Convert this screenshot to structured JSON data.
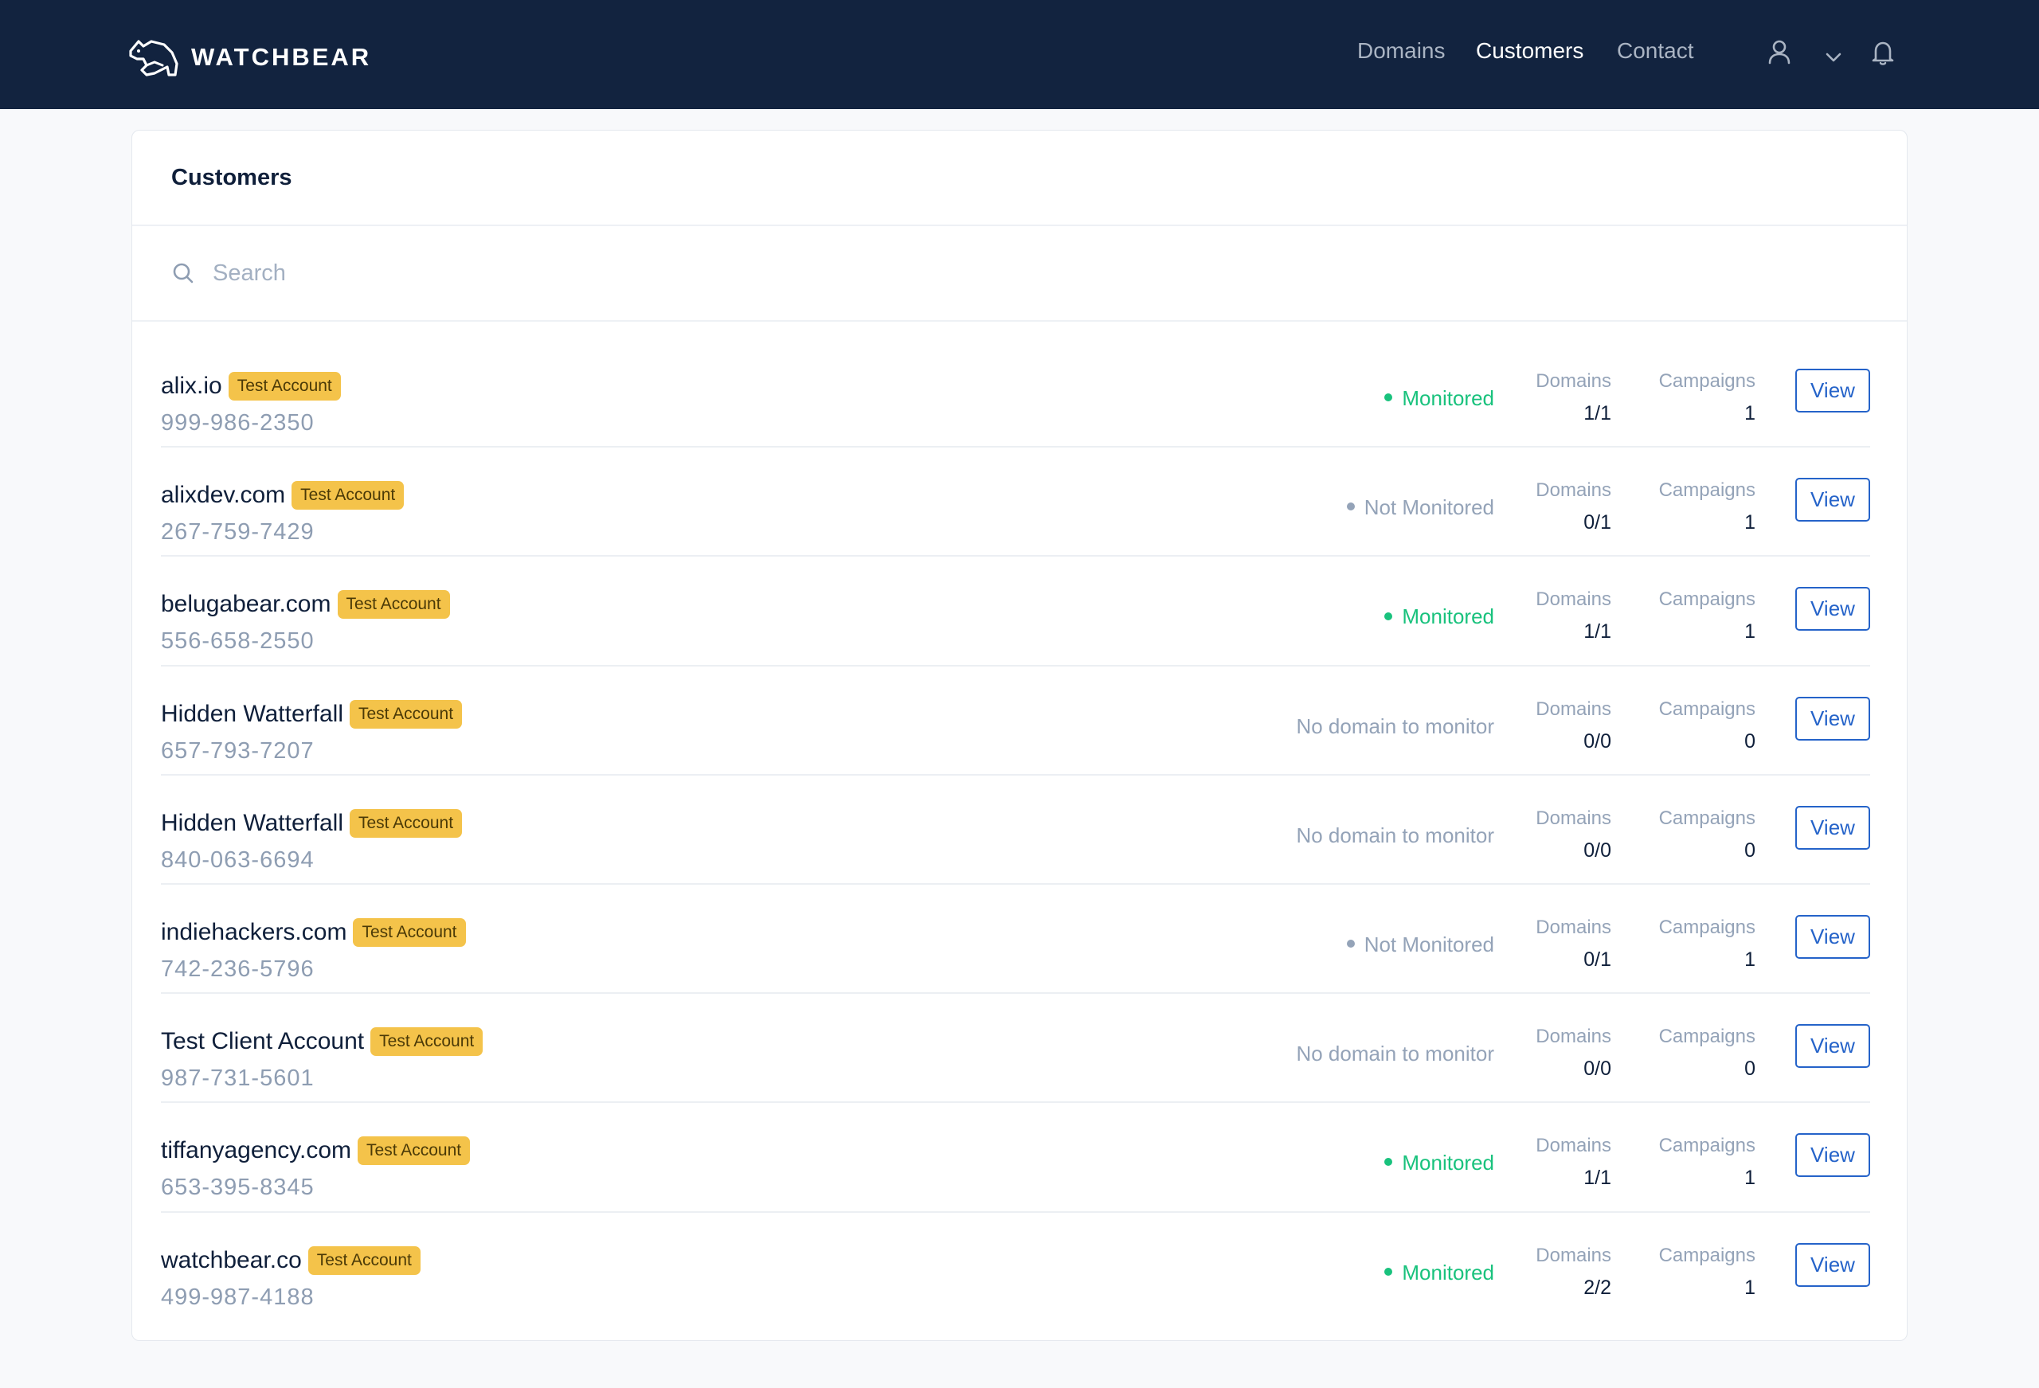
{
  "app": {
    "brand": "WATCHBEAR",
    "nav": [
      {
        "label": "Domains",
        "active": false
      },
      {
        "label": "Customers",
        "active": true
      },
      {
        "label": "Contact",
        "active": false
      }
    ],
    "icons": [
      "user-icon",
      "chevron-down-icon",
      "bell-icon"
    ]
  },
  "page": {
    "title": "Customers",
    "search_placeholder": "Search",
    "columns": {
      "domains_label": "Domains",
      "campaigns_label": "Campaigns",
      "view_label": "View"
    },
    "colors": {
      "header_bg": "#12233f",
      "badge": "#f4c34a",
      "monitored": "#19c27d",
      "link": "#2563c9"
    }
  },
  "customers": [
    {
      "name": "alix.io",
      "badge": "Test Account",
      "phone": "999-986-2350",
      "status": "Monitored",
      "status_type": "monitored",
      "domains": "1/1",
      "campaigns": "1"
    },
    {
      "name": "alixdev.com",
      "badge": "Test Account",
      "phone": "267-759-7429",
      "status": "Not Monitored",
      "status_type": "not",
      "domains": "0/1",
      "campaigns": "1"
    },
    {
      "name": "belugabear.com",
      "badge": "Test Account",
      "phone": "556-658-2550",
      "status": "Monitored",
      "status_type": "monitored",
      "domains": "1/1",
      "campaigns": "1"
    },
    {
      "name": "Hidden Watterfall",
      "badge": "Test Account",
      "phone": "657-793-7207",
      "status": "No domain to monitor",
      "status_type": "none",
      "domains": "0/0",
      "campaigns": "0"
    },
    {
      "name": "Hidden Watterfall",
      "badge": "Test Account",
      "phone": "840-063-6694",
      "status": "No domain to monitor",
      "status_type": "none",
      "domains": "0/0",
      "campaigns": "0"
    },
    {
      "name": "indiehackers.com",
      "badge": "Test Account",
      "phone": "742-236-5796",
      "status": "Not Monitored",
      "status_type": "not",
      "domains": "0/1",
      "campaigns": "1"
    },
    {
      "name": "Test Client Account",
      "badge": "Test Account",
      "phone": "987-731-5601",
      "status": "No domain to monitor",
      "status_type": "none",
      "domains": "0/0",
      "campaigns": "0"
    },
    {
      "name": "tiffanyagency.com",
      "badge": "Test Account",
      "phone": "653-395-8345",
      "status": "Monitored",
      "status_type": "monitored",
      "domains": "1/1",
      "campaigns": "1"
    },
    {
      "name": "watchbear.co",
      "badge": "Test Account",
      "phone": "499-987-4188",
      "status": "Monitored",
      "status_type": "monitored",
      "domains": "2/2",
      "campaigns": "1"
    }
  ]
}
